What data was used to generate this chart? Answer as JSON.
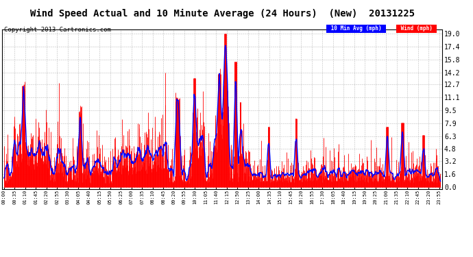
{
  "title": "Wind Speed Actual and 10 Minute Average (24 Hours)  (New)  20131225",
  "copyright": "Copyright 2013 Cartronics.com",
  "yticks": [
    0.0,
    1.6,
    3.2,
    4.8,
    6.3,
    7.9,
    9.5,
    11.1,
    12.7,
    14.2,
    15.8,
    17.4,
    19.0
  ],
  "wind_color": "#ff0000",
  "avg_color": "#0000ff",
  "background_color": "#ffffff",
  "grid_color": "#aaaaaa",
  "legend_avg_bg": "#0000ff",
  "legend_wind_bg": "#ff0000",
  "legend_avg_text": "10 Min Avg (mph)",
  "legend_wind_text": "Wind (mph)",
  "title_fontsize": 10,
  "copyright_fontsize": 6.5,
  "seed": 42,
  "tick_interval": 35,
  "n_points": 1440,
  "ymax": 19.5,
  "ymin": -0.2
}
